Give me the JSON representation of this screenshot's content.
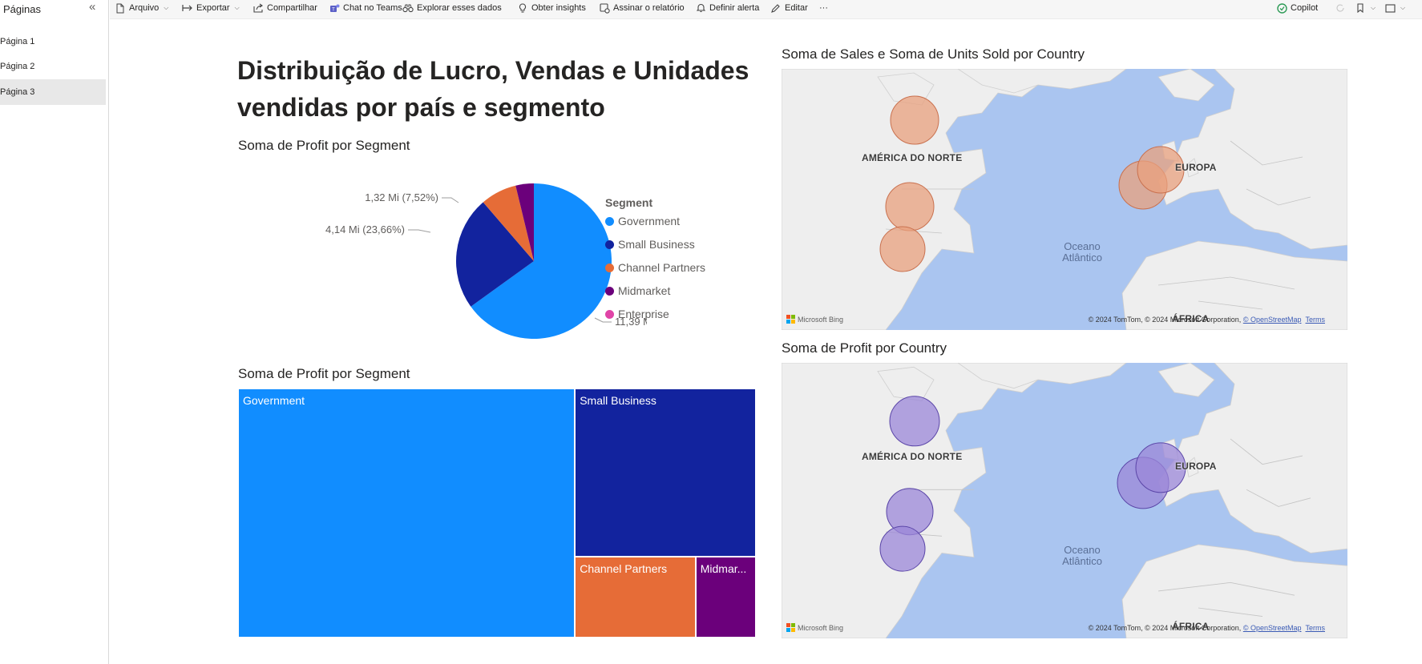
{
  "sidebar": {
    "title": "Páginas",
    "collapse_glyph": "«",
    "items": [
      {
        "label": "Página 1"
      },
      {
        "label": "Página 2"
      },
      {
        "label": "Página 3"
      }
    ]
  },
  "toolbar": {
    "items": [
      {
        "label": "Arquivo",
        "icon": "file-icon"
      },
      {
        "label": "Exportar",
        "icon": "export-icon"
      },
      {
        "label": "Compartilhar",
        "icon": "share-icon"
      },
      {
        "label": "Chat no Teams",
        "icon": "teams-icon"
      },
      {
        "label": "Explorar esses dados",
        "icon": "explore-icon"
      },
      {
        "label": "Obter insights",
        "icon": "lightbulb-icon"
      },
      {
        "label": "Assinar o relatório",
        "icon": "subscribe-icon"
      },
      {
        "label": "Definir alerta",
        "icon": "bell-icon"
      },
      {
        "label": "Editar",
        "icon": "pencil-icon"
      }
    ],
    "more_glyph": "···",
    "copilot_label": "Copilot"
  },
  "report": {
    "title": "Distribuição de Lucro, Vendas e Unidades vendidas por país e segmento"
  },
  "colors": {
    "Government": "#118dff",
    "Small Business": "#12239e",
    "Channel Partners": "#e66c37",
    "Midmarket": "#6b007b",
    "Enterprise": "#e044a7",
    "map_bubble_sales": "#e8a07e",
    "map_bubble_profit": "#9b87d8"
  },
  "pie": {
    "title": "Soma de Profit por Segment",
    "legend_title": "Segment",
    "legend": [
      "Government",
      "Small Business",
      "Channel Partners",
      "Midmarket",
      "Enterprise"
    ],
    "labels": {
      "government": "11,39 Mi (65,04%)",
      "small_business": "4,14 Mi (23,66%)",
      "channel_partners": "1,32 Mi (7,52%)"
    }
  },
  "treemap": {
    "title": "Soma de Profit por Segment",
    "cells": [
      "Government",
      "Small Business",
      "Channel Partners",
      "Midmar..."
    ]
  },
  "map_sales": {
    "title": "Soma de Sales e Soma de Units Sold por Country",
    "label_na": "AMÉRICA DO NORTE",
    "label_eu": "EUROPA",
    "label_af": "ÁFRICA",
    "ocean": "Oceano\nAtlântico",
    "bing": "Microsoft Bing",
    "credit": "© 2024 TomTom, © 2024 Microsoft Corporation, ",
    "osm": "© OpenStreetMap",
    "terms": "Terms"
  },
  "map_profit": {
    "title": "Soma de Profit por Country",
    "label_na": "AMÉRICA DO NORTE",
    "label_eu": "EUROPA",
    "label_af": "ÁFRICA",
    "ocean": "Oceano\nAtlântico",
    "bing": "Microsoft Bing",
    "credit": "© 2024 TomTom, © 2024 Microsoft Corporation, ",
    "osm": "© OpenStreetMap",
    "terms": "Terms"
  },
  "chart_data": [
    {
      "type": "pie",
      "title": "Soma de Profit por Segment",
      "categories": [
        "Government",
        "Small Business",
        "Channel Partners",
        "Midmarket",
        "Enterprise"
      ],
      "values": [
        11.39,
        4.14,
        1.32,
        0.66,
        -0.02
      ],
      "percent": [
        65.04,
        23.66,
        7.52,
        3.78,
        0
      ],
      "legend": "right"
    },
    {
      "type": "treemap",
      "title": "Soma de Profit por Segment",
      "categories": [
        "Government",
        "Small Business",
        "Channel Partners",
        "Midmarket"
      ],
      "values": [
        11.39,
        4.14,
        1.32,
        0.66
      ]
    }
  ]
}
